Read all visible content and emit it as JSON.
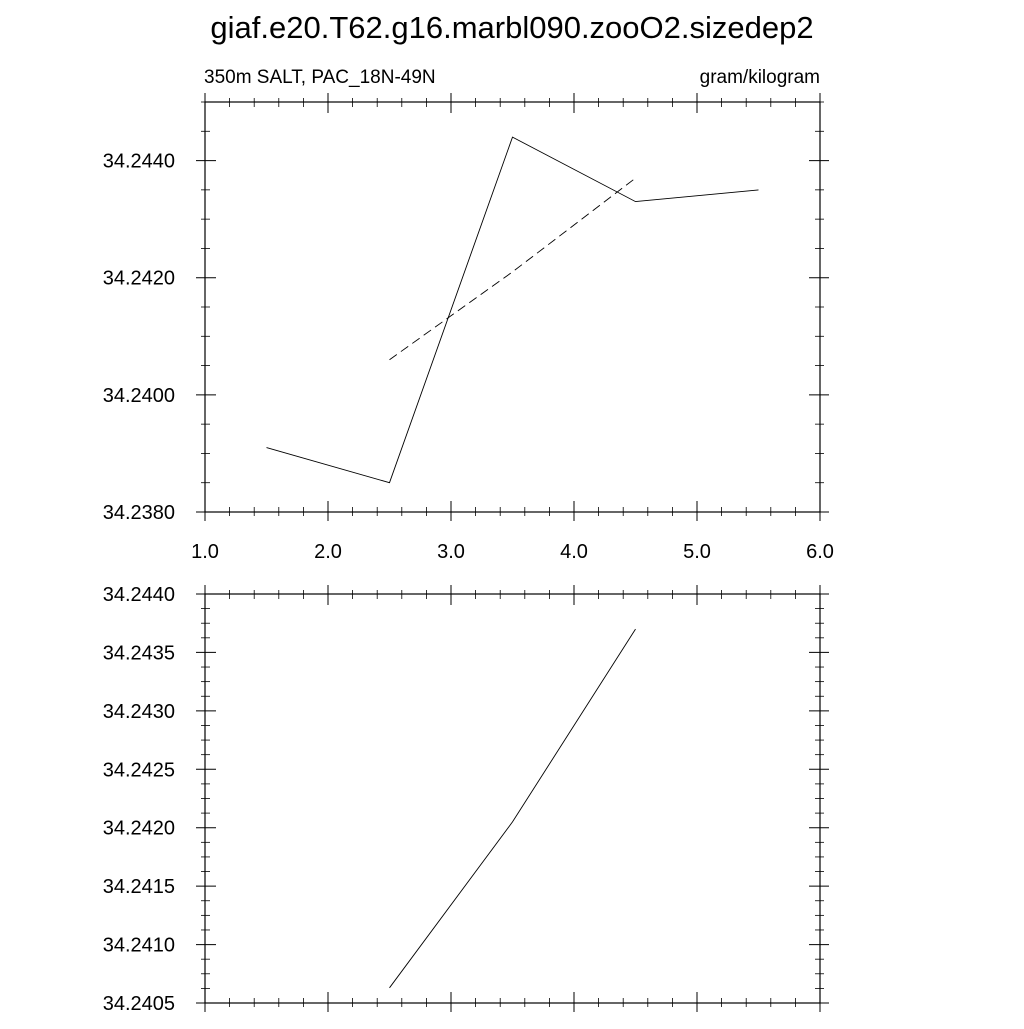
{
  "title": "giaf.e20.T62.g16.marbl090.zooO2.sizedep2",
  "chart_data": [
    {
      "type": "line",
      "subtitle_left": "350m SALT, PAC_18N-49N",
      "subtitle_right": "gram/kilogram",
      "xlim": [
        1.0,
        6.0
      ],
      "ylim": [
        34.238,
        34.245
      ],
      "x_ticks": [
        1.0,
        2.0,
        3.0,
        4.0,
        5.0,
        6.0
      ],
      "x_tick_labels": [
        "1.0",
        "2.0",
        "3.0",
        "4.0",
        "5.0",
        "6.0"
      ],
      "y_ticks": [
        34.238,
        34.24,
        34.242,
        34.244
      ],
      "y_tick_labels": [
        "34.2380",
        "34.2400",
        "34.2420",
        "34.2440"
      ],
      "grid": false,
      "series": [
        {
          "style": "solid",
          "x": [
            1.5,
            2.5,
            3.5,
            4.5,
            5.5
          ],
          "y": [
            34.2391,
            34.2385,
            34.2444,
            34.2433,
            34.2435
          ]
        },
        {
          "style": "dashed",
          "x": [
            2.5,
            3.5,
            4.5
          ],
          "y": [
            34.2406,
            34.2421,
            34.2437
          ]
        }
      ]
    },
    {
      "type": "line",
      "xlim": [
        1.0,
        6.0
      ],
      "ylim": [
        34.2405,
        34.244
      ],
      "x_ticks": [
        1.0,
        2.0,
        3.0,
        4.0,
        5.0,
        6.0
      ],
      "y_ticks": [
        34.2405,
        34.241,
        34.2415,
        34.242,
        34.2425,
        34.243,
        34.2435,
        34.244
      ],
      "y_tick_labels": [
        "34.2405",
        "34.2410",
        "34.2415",
        "34.2420",
        "34.2425",
        "34.2430",
        "34.2435",
        "34.2440"
      ],
      "grid": false,
      "series": [
        {
          "style": "solid",
          "x": [
            2.5,
            3.5,
            4.5
          ],
          "y": [
            34.24063,
            34.24205,
            34.2437
          ]
        }
      ]
    }
  ]
}
